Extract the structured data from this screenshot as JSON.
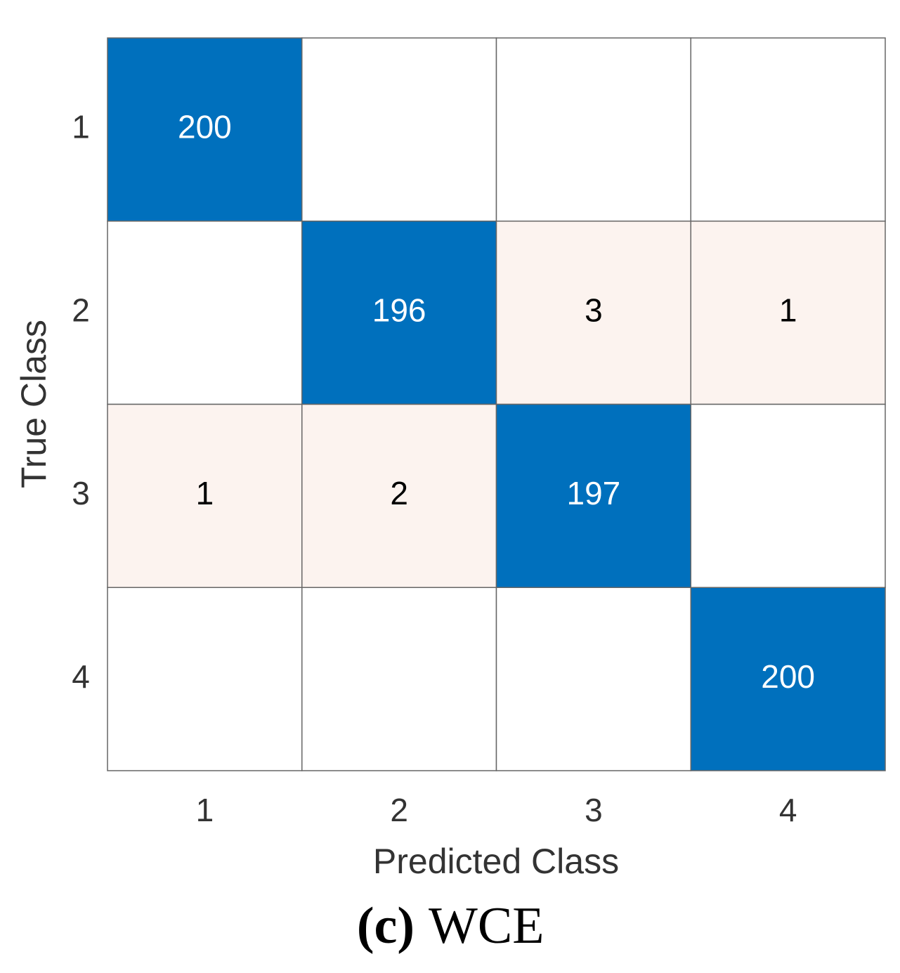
{
  "chart_data": {
    "type": "confusion-matrix",
    "row_categories": [
      "1",
      "2",
      "3",
      "4"
    ],
    "column_categories": [
      "1",
      "2",
      "3",
      "4"
    ],
    "matrix": [
      [
        200,
        null,
        null,
        null
      ],
      [
        null,
        196,
        3,
        1
      ],
      [
        1,
        2,
        197,
        null
      ],
      [
        null,
        null,
        null,
        200
      ]
    ],
    "ylabel": "True Class",
    "xlabel": "Predicted Class",
    "caption_label": "(c)",
    "caption_text": "WCE",
    "diagonal_color": "#0070bd",
    "off_diagonal_color": "#fcf3ef",
    "empty_color": "#ffffff"
  }
}
